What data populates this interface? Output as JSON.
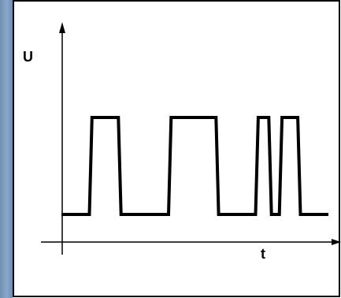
{
  "chart_data": {
    "type": "line",
    "title": "",
    "xlabel": "t",
    "ylabel": "U",
    "ylim": [
      0,
      1
    ],
    "grid": false,
    "legend": "none",
    "series": [
      {
        "x": [
          0,
          0.1,
          0.11,
          0.21,
          0.22,
          0.4,
          0.41,
          0.58,
          0.59,
          0.73,
          0.74,
          0.78,
          0.79,
          0.82,
          0.83,
          0.89,
          0.9,
          1.0
        ],
        "values": [
          0,
          0,
          1,
          1,
          0,
          0,
          1,
          1,
          0,
          0,
          1,
          1,
          0,
          0,
          1,
          1,
          0,
          0
        ]
      }
    ],
    "colors": {
      "line": "#000000",
      "axis": "#000000",
      "frame": "#000000",
      "stripe": "#7f9fc4"
    }
  }
}
